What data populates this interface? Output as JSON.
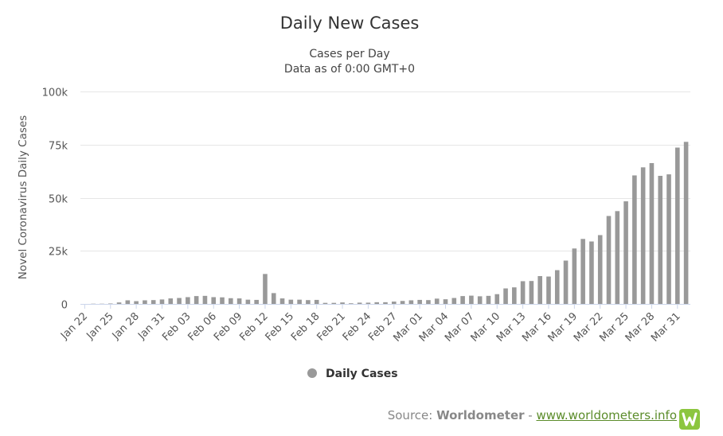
{
  "chart_data": {
    "type": "bar",
    "title": "Daily New Cases",
    "subtitle_lines": [
      "Cases per Day",
      "Data as of 0:00 GMT+0"
    ],
    "xlabel": "",
    "ylabel": "Novel Coronavirus Daily Cases",
    "ylim": [
      0,
      100000
    ],
    "y_ticks": [
      0,
      25000,
      50000,
      75000,
      100000
    ],
    "y_tick_labels": [
      "0",
      "25k",
      "50k",
      "75k",
      "100k"
    ],
    "grid": true,
    "legend": {
      "position": "bottom-center",
      "entries": [
        "Daily Cases"
      ]
    },
    "bar_color": "#999999",
    "categories": [
      "Jan 22",
      "Jan 23",
      "Jan 24",
      "Jan 25",
      "Jan 26",
      "Jan 27",
      "Jan 28",
      "Jan 29",
      "Jan 30",
      "Jan 31",
      "Feb 01",
      "Feb 02",
      "Feb 03",
      "Feb 04",
      "Feb 05",
      "Feb 06",
      "Feb 07",
      "Feb 08",
      "Feb 09",
      "Feb 10",
      "Feb 11",
      "Feb 12",
      "Feb 13",
      "Feb 14",
      "Feb 15",
      "Feb 16",
      "Feb 17",
      "Feb 18",
      "Feb 19",
      "Feb 20",
      "Feb 21",
      "Feb 22",
      "Feb 23",
      "Feb 24",
      "Feb 25",
      "Feb 26",
      "Feb 27",
      "Feb 28",
      "Feb 29",
      "Mar 01",
      "Mar 02",
      "Mar 03",
      "Mar 04",
      "Mar 05",
      "Mar 06",
      "Mar 07",
      "Mar 08",
      "Mar 09",
      "Mar 10",
      "Mar 11",
      "Mar 12",
      "Mar 13",
      "Mar 14",
      "Mar 15",
      "Mar 16",
      "Mar 17",
      "Mar 18",
      "Mar 19",
      "Mar 20",
      "Mar 21",
      "Mar 22",
      "Mar 23",
      "Mar 24",
      "Mar 25",
      "Mar 26",
      "Mar 27",
      "Mar 28",
      "Mar 29",
      "Mar 30",
      "Mar 31",
      "Apr 01"
    ],
    "x_tick_labels": [
      "Jan 22",
      "Jan 25",
      "Jan 28",
      "Jan 31",
      "Feb 03",
      "Feb 06",
      "Feb 09",
      "Feb 12",
      "Feb 15",
      "Feb 18",
      "Feb 21",
      "Feb 24",
      "Feb 27",
      "Mar 01",
      "Mar 04",
      "Mar 07",
      "Mar 10",
      "Mar 13",
      "Mar 16",
      "Mar 19",
      "Mar 22",
      "Mar 25",
      "Mar 28",
      "Mar 31"
    ],
    "series": [
      {
        "name": "Daily Cases",
        "values": [
          0,
          100,
          100,
          200,
          700,
          1700,
          1300,
          1700,
          1800,
          2100,
          2600,
          2800,
          3200,
          3700,
          3800,
          3200,
          3100,
          2700,
          2600,
          2000,
          1900,
          14100,
          5100,
          2600,
          2000,
          2000,
          1800,
          1900,
          500,
          500,
          700,
          300,
          600,
          600,
          800,
          800,
          1100,
          1400,
          1700,
          1900,
          1800,
          2500,
          2200,
          2800,
          3700,
          3900,
          3600,
          3800,
          4600,
          7300,
          7800,
          10700,
          10800,
          13100,
          12900,
          15900,
          20400,
          26100,
          30600,
          29400,
          32400,
          41400,
          43700,
          48300,
          60500,
          64300,
          66300,
          60300,
          61000,
          73600,
          76300
        ]
      }
    ]
  },
  "source": {
    "prefix": "Source: ",
    "name": "Worldometer",
    "separator": " - ",
    "link_text": "www.worldometers.info",
    "logo_letter": "W"
  }
}
